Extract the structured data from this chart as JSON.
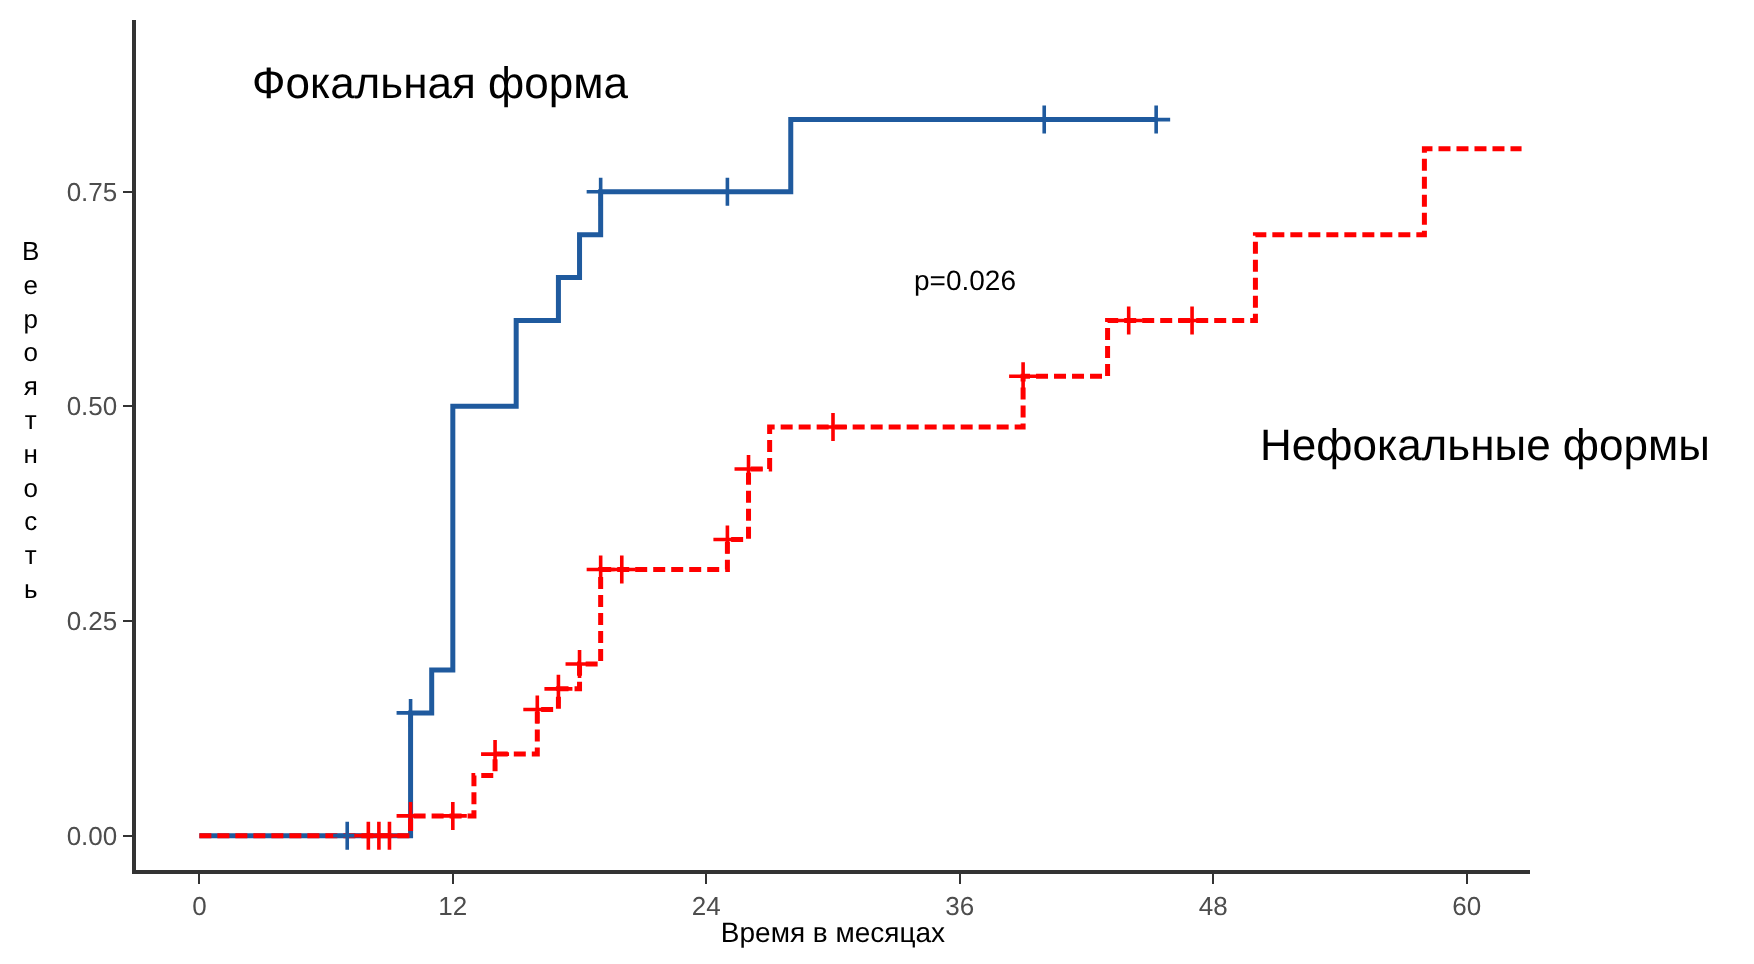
{
  "chart_data": {
    "type": "step",
    "xlabel": "Время в месяцах",
    "ylabel": "Вероятность",
    "annotations": [
      "p=0.026"
    ],
    "xlim": [
      -3,
      63
    ],
    "xticks": [
      0,
      12,
      24,
      36,
      48,
      60
    ],
    "ylim": [
      -0.04,
      0.95
    ],
    "yticks": [
      {
        "value": 0,
        "label": "0.00"
      },
      0.25,
      {
        "value": 0.5,
        "label": "0.50"
      },
      0.75
    ],
    "series": [
      {
        "name": "Фокальная форма",
        "color": "#1f5a9e",
        "line_style": "solid",
        "marker": "none",
        "x": [
          0,
          10,
          11,
          12,
          15,
          17,
          18,
          19,
          28,
          45.3
        ],
        "values": [
          0,
          0.143,
          0.193,
          0.5,
          0.6,
          0.65,
          0.7,
          0.75,
          0.834,
          0.834
        ]
      },
      {
        "name": "Нефокальные формы",
        "color": "#ff0000",
        "line_style": "dashed",
        "marker": "none",
        "x": [
          0,
          10,
          13,
          14,
          16,
          17,
          18,
          19,
          25,
          26,
          27,
          39,
          43,
          50,
          58,
          62.6
        ],
        "values": [
          0,
          0.023,
          0.07,
          0.095,
          0.147,
          0.171,
          0.2,
          0.31,
          0.345,
          0.427,
          0.476,
          0.535,
          0.6,
          0.7,
          0.8,
          0.8
        ]
      },
      {
        "type": "scatter",
        "color": "#1f5a9e",
        "marker": "cross",
        "x": [
          7,
          10,
          19,
          25,
          40,
          45.3
        ],
        "values": [
          0,
          0.143,
          0.75,
          0.75,
          0.834,
          0.834
        ]
      },
      {
        "type": "scatter",
        "color": "#ff0000",
        "marker": "cross",
        "x": [
          8,
          8.5,
          9,
          10,
          12,
          14,
          16,
          17,
          18,
          19,
          20,
          25,
          26,
          30,
          39,
          44,
          47
        ],
        "values": [
          0,
          0,
          0,
          0.023,
          0.023,
          0.095,
          0.147,
          0.171,
          0.2,
          0.31,
          0.31,
          0.345,
          0.427,
          0.476,
          0.535,
          0.6,
          0.6
        ]
      }
    ]
  }
}
